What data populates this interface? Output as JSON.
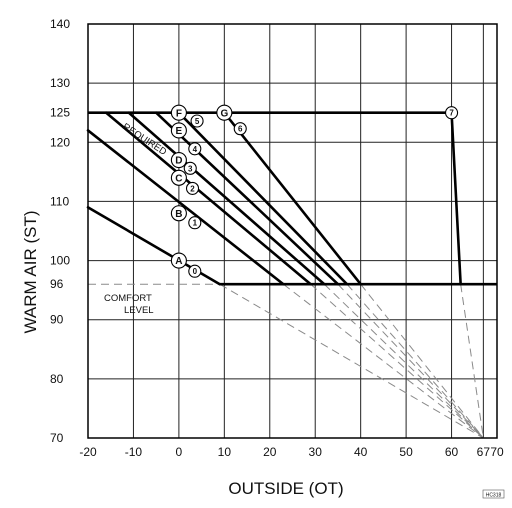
{
  "chart_data": {
    "type": "line",
    "xlabel": "OUTSIDE (OT)",
    "ylabel": "WARM AIR (ST)",
    "xlim": [
      -20,
      70
    ],
    "ylim": [
      70,
      140
    ],
    "x_ticks": [
      -20,
      -10,
      0,
      10,
      20,
      30,
      40,
      50,
      60,
      67,
      70
    ],
    "x_tick_labels": [
      "-20",
      "-10",
      "0",
      "10",
      "20",
      "30",
      "40",
      "50",
      "60",
      "67",
      "70"
    ],
    "y_ticks": [
      70,
      80,
      90,
      96,
      100,
      110,
      120,
      125,
      130,
      140
    ],
    "y_tick_labels": [
      "70",
      "80",
      "90",
      "96",
      "100",
      "110",
      "120",
      "125",
      "130",
      "140"
    ],
    "grid": true,
    "annotations": {
      "required": "REQUIRED",
      "comfort_line1": "COMFORT",
      "comfort_line2": "LEVEL",
      "corner_code": "HC318"
    },
    "series": [
      {
        "label": "A",
        "points": [
          [
            -20,
            109
          ],
          [
            9,
            96
          ]
        ]
      },
      {
        "label": "B",
        "points": [
          [
            -20,
            122
          ],
          [
            23,
            96
          ]
        ]
      },
      {
        "label": "C",
        "points": [
          [
            -16,
            125
          ],
          [
            29,
            96
          ]
        ]
      },
      {
        "label": "D",
        "points": [
          [
            -11,
            125
          ],
          [
            32,
            96
          ]
        ]
      },
      {
        "label": "E",
        "points": [
          [
            -5,
            125
          ],
          [
            35,
            96
          ]
        ]
      },
      {
        "label": "F",
        "points": [
          [
            0,
            125
          ],
          [
            37,
            96
          ]
        ]
      },
      {
        "label": "G",
        "points": [
          [
            10,
            125
          ],
          [
            40,
            96
          ]
        ]
      },
      {
        "label": "7",
        "points": [
          [
            60,
            125
          ],
          [
            62,
            96
          ]
        ]
      }
    ],
    "limits": [
      {
        "name": "upper limit",
        "points": [
          [
            -20,
            125
          ],
          [
            60,
            125
          ]
        ]
      },
      {
        "name": "comfort level",
        "points": [
          [
            9,
            96
          ],
          [
            70,
            96
          ]
        ]
      }
    ],
    "comfort_dashed_start": [
      -20,
      96
    ],
    "convergence_point": [
      67,
      70
    ],
    "markers": [
      {
        "text": "A",
        "x": 0,
        "y": 100
      },
      {
        "text": "B",
        "x": 0,
        "y": 108
      },
      {
        "text": "C",
        "x": 0,
        "y": 114
      },
      {
        "text": "D",
        "x": 0,
        "y": 117
      },
      {
        "text": "E",
        "x": 0,
        "y": 122
      },
      {
        "text": "F",
        "x": 0,
        "y": 125
      },
      {
        "text": "G",
        "x": 10,
        "y": 125
      },
      {
        "text": "0",
        "x": 3.5,
        "y": 98.2
      },
      {
        "text": "1",
        "x": 3.5,
        "y": 106.4
      },
      {
        "text": "2",
        "x": 3.0,
        "y": 112.2
      },
      {
        "text": "3",
        "x": 2.5,
        "y": 115.6
      },
      {
        "text": "4",
        "x": 3.5,
        "y": 118.9
      },
      {
        "text": "5",
        "x": 4.0,
        "y": 123.6
      },
      {
        "text": "6",
        "x": 13.5,
        "y": 122.3
      },
      {
        "text": "7",
        "x": 60,
        "y": 125
      }
    ]
  }
}
